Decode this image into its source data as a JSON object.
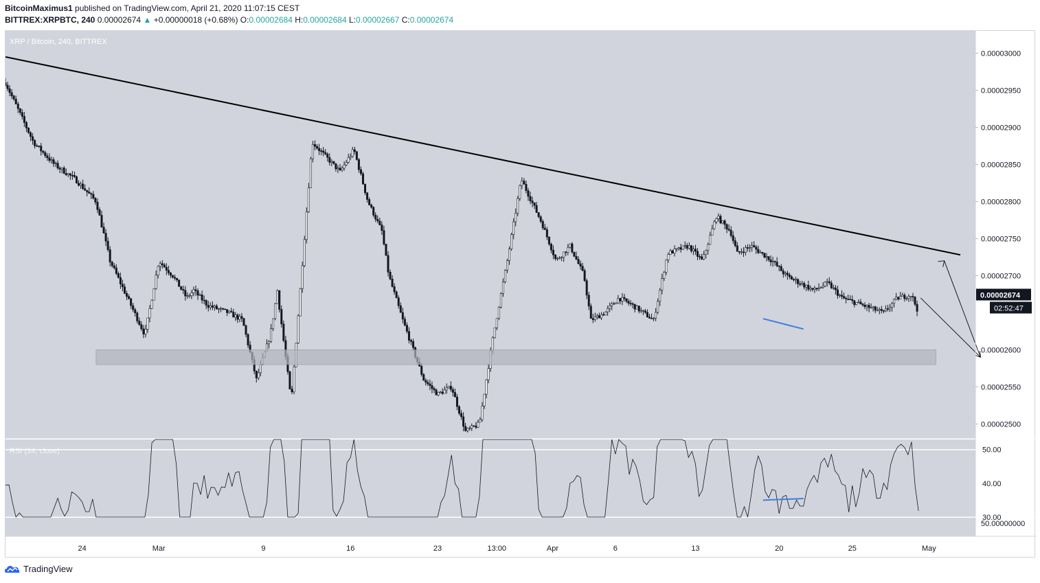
{
  "header": {
    "author": "BitcoinMaximus1",
    "published_text": "published on TradingView.com, April 21, 2020 11:07:15 CEST",
    "symbol": "BITTREX:XRPBTC, 240",
    "last_price": "0.00002674",
    "change": "+0.00000018 (+0.68%)",
    "o_label": "O:",
    "o_value": "0.00002684",
    "h_label": "H:",
    "h_value": "0.00002684",
    "l_label": "L:",
    "l_value": "0.00002667",
    "c_label": "C:",
    "c_value": "0.00002674",
    "change_arrow": "▲"
  },
  "footer": {
    "brand": "TradingView",
    "logo_icon": "tradingview-cloud-icon"
  },
  "colors": {
    "pane_bg": "#d1d4dc",
    "candle": "#131722",
    "trendline": "#000000",
    "zone": "#b2b5be",
    "divergence": "#3d7de4",
    "label_bg": "#131722",
    "positive": "#26a69a"
  },
  "chart_data": [
    {
      "type": "candlestick",
      "title": "XRP / Bitcoin, 240, BITTREX",
      "y_axis_ticks": [
        "0.00003000",
        "0.00002950",
        "0.00002900",
        "0.00002850",
        "0.00002800",
        "0.00002750",
        "0.00002700",
        "0.00002600",
        "0.00002550",
        "0.00002500"
      ],
      "ylim": [
        2.48e-05,
        3.03e-05
      ],
      "x_axis_ticks": [
        "24",
        "Mar",
        "9",
        "16",
        "23",
        "13:00",
        "Apr",
        "6",
        "13",
        "20",
        "25",
        "May"
      ],
      "price_label": "0.00002674",
      "countdown_label": "02:52:47",
      "price_path_x": [
        0,
        4,
        7,
        10,
        13,
        15,
        18,
        20,
        22,
        24,
        26,
        27,
        29,
        32,
        34,
        36,
        38,
        39,
        41,
        44,
        46,
        48,
        50,
        52,
        54,
        55,
        57,
        60,
        62,
        64,
        66,
        68,
        70,
        72,
        74,
        77,
        79,
        81,
        83,
        84,
        86,
        88,
        90,
        93,
        95,
        98,
        100,
        102,
        104,
        105,
        107,
        110,
        112,
        114,
        116,
        118,
        120,
        123,
        126,
        128,
        130,
        131,
        133,
        135,
        137
      ],
      "price_path_y": [
        2.96e-05,
        2.88e-05,
        2.85e-05,
        2.83e-05,
        2.8e-05,
        2.72e-05,
        2.66e-05,
        2.62e-05,
        2.72e-05,
        2.7e-05,
        2.67e-05,
        2.68e-05,
        2.66e-05,
        2.65e-05,
        2.64e-05,
        2.56e-05,
        2.62e-05,
        2.68e-05,
        2.53e-05,
        2.88e-05,
        2.86e-05,
        2.84e-05,
        2.87e-05,
        2.8e-05,
        2.76e-05,
        2.7e-05,
        2.64e-05,
        2.56e-05,
        2.54e-05,
        2.55e-05,
        2.49e-05,
        2.5e-05,
        2.62e-05,
        2.72e-05,
        2.83e-05,
        2.77e-05,
        2.72e-05,
        2.74e-05,
        2.7e-05,
        2.64e-05,
        2.65e-05,
        2.67e-05,
        2.66e-05,
        2.64e-05,
        2.73e-05,
        2.74e-05,
        2.72e-05,
        2.78e-05,
        2.76e-05,
        2.73e-05,
        2.74e-05,
        2.72e-05,
        2.7e-05,
        2.69e-05,
        2.68e-05,
        2.69e-05,
        2.67e-05,
        2.66e-05,
        2.65e-05,
        2.67e-05,
        2.674e-05,
        2.65e-05,
        2.6e-05,
        2.67e-05,
        2.72e-05
      ],
      "projection_segment_start": 131,
      "trendline": {
        "from": [
          0,
          2.995e-05
        ],
        "to": [
          137,
          2.728e-05
        ]
      },
      "support_zone": [
        2.58e-05,
        2.6e-05
      ]
    },
    {
      "type": "line",
      "title": "RSI (14, close)",
      "y_axis_ticks": [
        "50.00",
        "40.00",
        "30.00"
      ],
      "ylim": [
        30,
        53
      ],
      "secondary_label": "50.00000000"
    }
  ]
}
